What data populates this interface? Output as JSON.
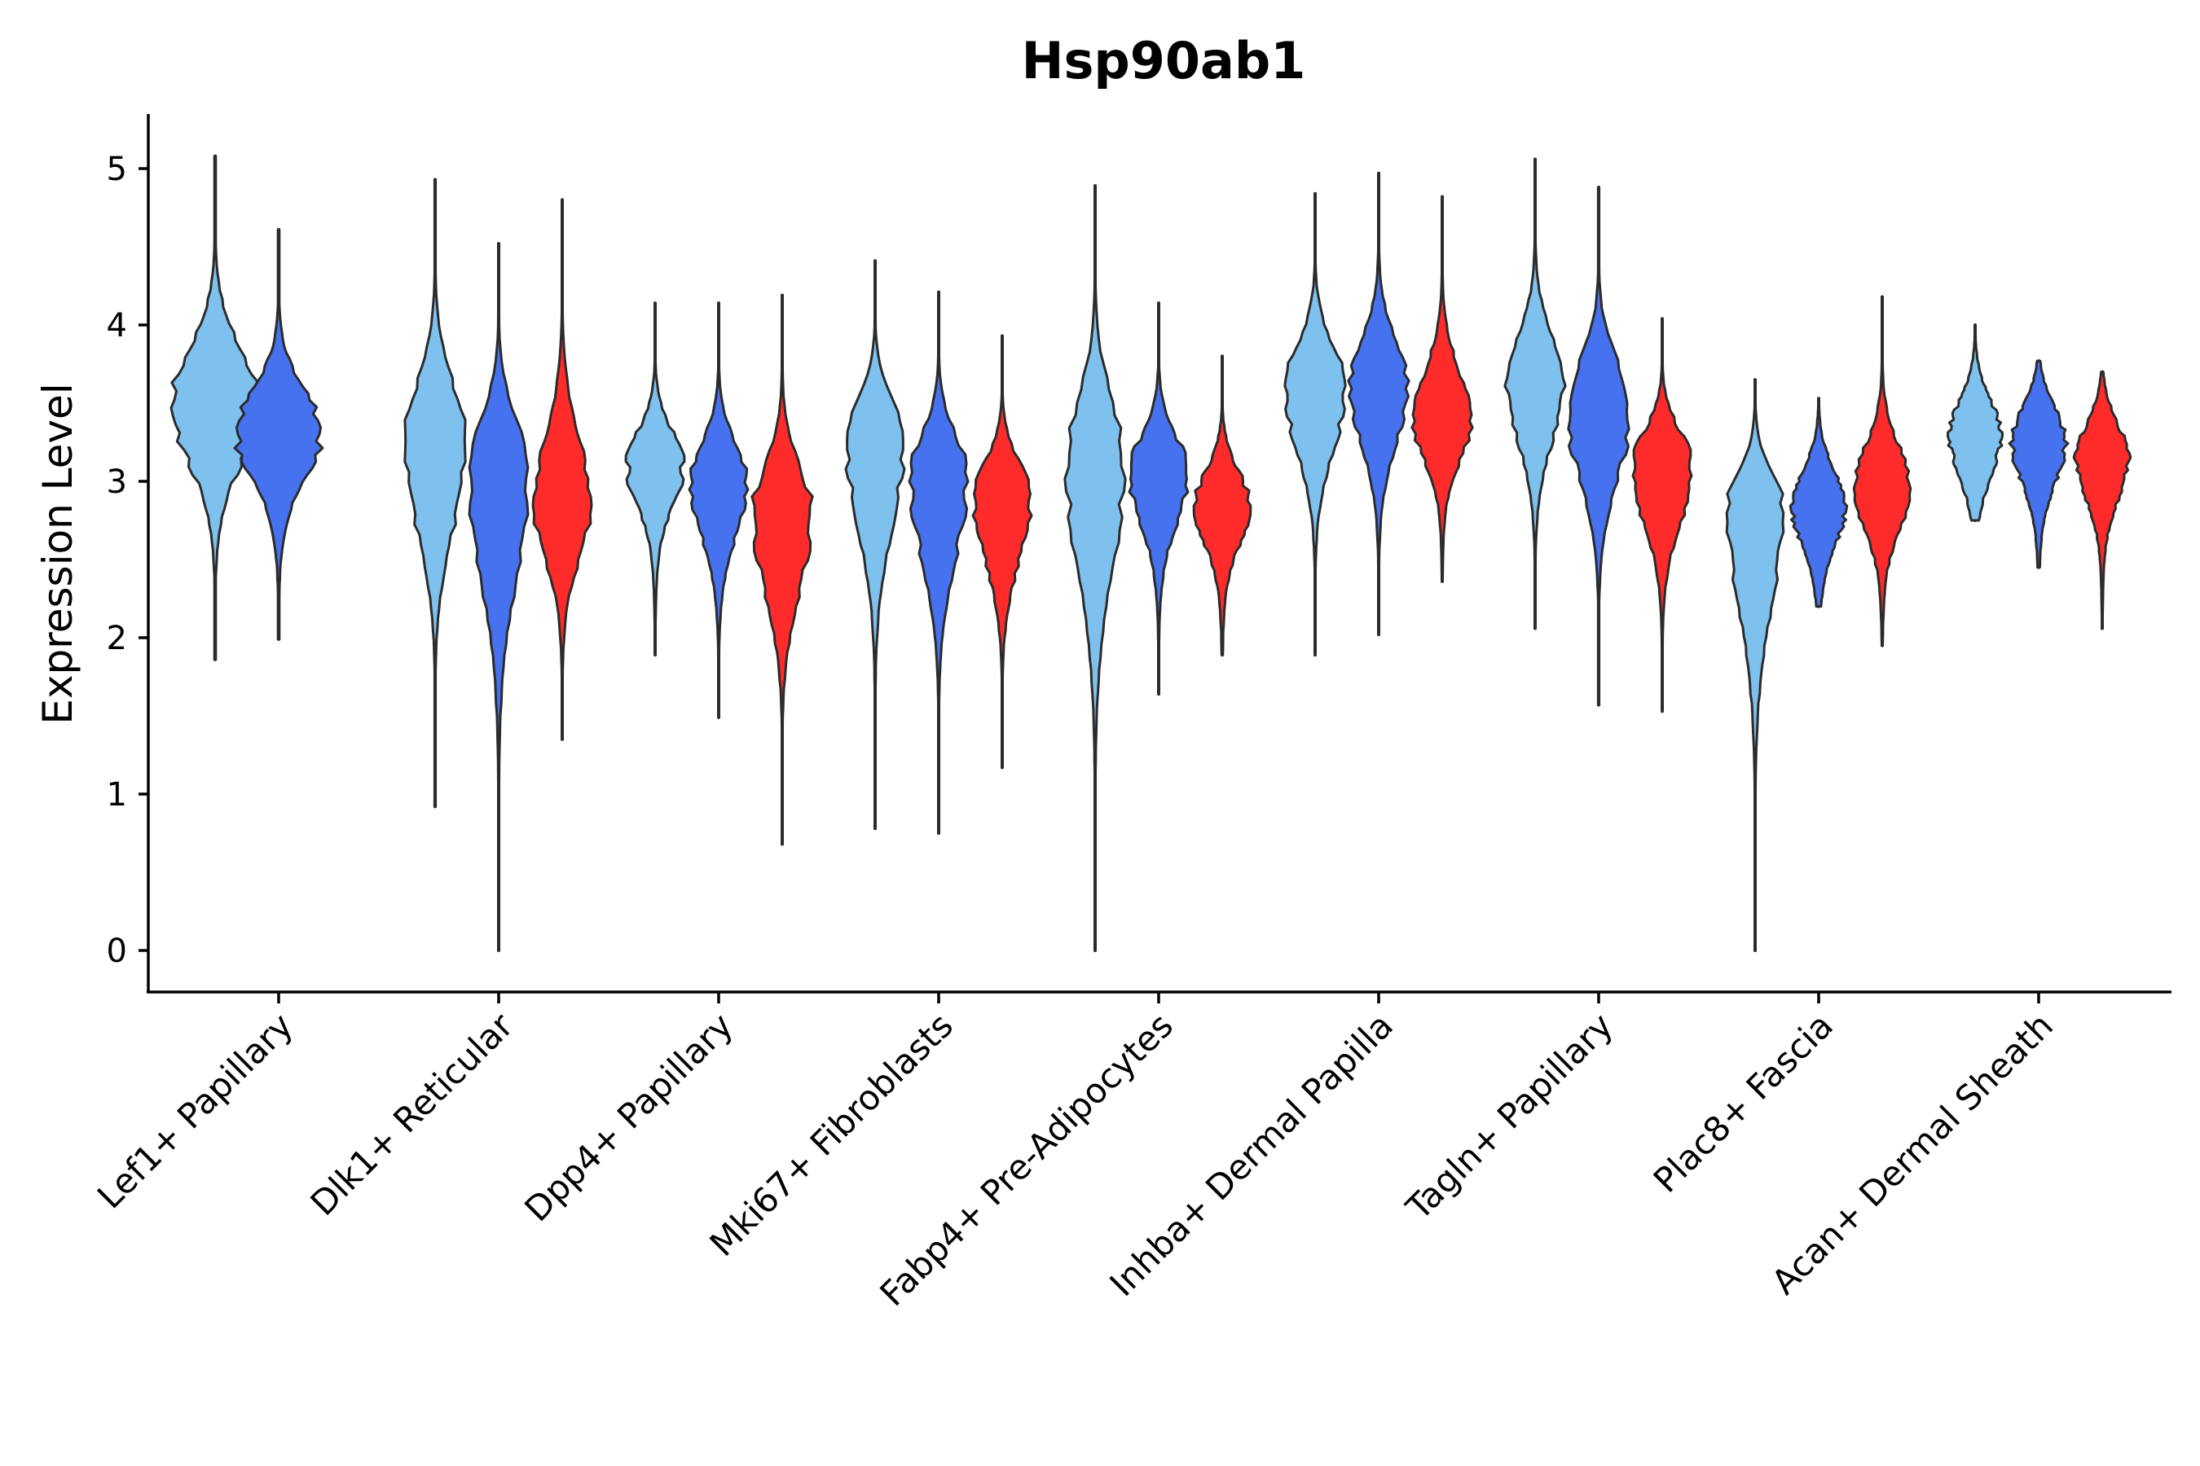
{
  "chart_data": {
    "type": "violin",
    "title": "Hsp90ab1",
    "xlabel": "",
    "ylabel": "Expression Level",
    "ylim": [
      -0.25,
      5.35
    ],
    "yticks": [
      "0",
      "1",
      "2",
      "3",
      "4",
      "5"
    ],
    "grid": false,
    "legend": "none",
    "series_colors": {
      "group_a": "#7ec0ee",
      "group_b": "#4672ef",
      "group_c": "#ff2b2b"
    },
    "categories": [
      "Lef1+ Papillary",
      "Dlk1+ Reticular",
      "Dpp4+ Papillary",
      "Mki67+ Fibroblasts",
      "Fabp4+ Pre-Adipocytes",
      "Inhba+ Dermal Papilla",
      "Tagln+ Papillary",
      "Plac8+ Fascia",
      "Acan+ Dermal Sheath"
    ],
    "groups": [
      {
        "category": "Lef1+ Papillary",
        "violins": [
          {
            "series": "group_a",
            "min": 1.86,
            "max": 5.08,
            "median": 3.5,
            "width": 0.9
          },
          {
            "series": "group_b",
            "min": 1.99,
            "max": 4.61,
            "median": 3.3,
            "width": 0.9
          }
        ]
      },
      {
        "category": "Dlk1+ Reticular",
        "violins": [
          {
            "series": "group_a",
            "min": 0.92,
            "max": 4.93,
            "median": 3.25,
            "width": 0.62
          },
          {
            "series": "group_b",
            "min": 0.0,
            "max": 4.52,
            "median": 3.1,
            "width": 0.6
          },
          {
            "series": "group_c",
            "min": 1.35,
            "max": 4.8,
            "median": 2.85,
            "width": 0.6
          }
        ]
      },
      {
        "category": "Dpp4+ Papillary",
        "violins": [
          {
            "series": "group_a",
            "min": 1.89,
            "max": 4.14,
            "median": 3.1,
            "width": 0.6
          },
          {
            "series": "group_b",
            "min": 1.49,
            "max": 4.14,
            "median": 3.0,
            "width": 0.6
          },
          {
            "series": "group_c",
            "min": 0.68,
            "max": 4.19,
            "median": 2.8,
            "width": 0.62
          }
        ]
      },
      {
        "category": "Mki67+ Fibroblasts",
        "violins": [
          {
            "series": "group_a",
            "min": 0.78,
            "max": 4.41,
            "median": 3.3,
            "width": 0.6
          },
          {
            "series": "group_b",
            "min": 0.75,
            "max": 4.21,
            "median": 3.05,
            "width": 0.6
          },
          {
            "series": "group_c",
            "min": 1.17,
            "max": 3.93,
            "median": 2.9,
            "width": 0.6
          }
        ]
      },
      {
        "category": "Fabp4+ Pre-Adipocytes",
        "violins": [
          {
            "series": "group_a",
            "min": 0.0,
            "max": 4.89,
            "median": 3.15,
            "width": 0.62
          },
          {
            "series": "group_b",
            "min": 1.64,
            "max": 4.14,
            "median": 3.05,
            "width": 0.6
          },
          {
            "series": "group_c",
            "min": 1.89,
            "max": 3.8,
            "median": 2.85,
            "width": 0.58
          }
        ]
      },
      {
        "category": "Inhba+ Dermal Papilla",
        "violins": [
          {
            "series": "group_a",
            "min": 1.89,
            "max": 4.84,
            "median": 3.6,
            "width": 0.62
          },
          {
            "series": "group_b",
            "min": 2.02,
            "max": 4.97,
            "median": 3.6,
            "width": 0.62
          },
          {
            "series": "group_c",
            "min": 2.36,
            "max": 4.82,
            "median": 3.4,
            "width": 0.62
          }
        ]
      },
      {
        "category": "Tagln+ Papillary",
        "violins": [
          {
            "series": "group_a",
            "min": 2.06,
            "max": 5.06,
            "median": 3.6,
            "width": 0.62
          },
          {
            "series": "group_b",
            "min": 1.57,
            "max": 4.88,
            "median": 3.45,
            "width": 0.62
          },
          {
            "series": "group_c",
            "min": 1.53,
            "max": 4.04,
            "median": 3.1,
            "width": 0.6
          }
        ]
      },
      {
        "category": "Plac8+ Fascia",
        "violins": [
          {
            "series": "group_a",
            "min": 0.0,
            "max": 3.65,
            "median": 2.85,
            "width": 0.58
          },
          {
            "series": "group_b",
            "min": 2.2,
            "max": 3.53,
            "median": 2.85,
            "width": 0.58
          },
          {
            "series": "group_c",
            "min": 1.95,
            "max": 4.18,
            "median": 2.95,
            "width": 0.58
          }
        ]
      },
      {
        "category": "Acan+ Dermal Sheath",
        "violins": [
          {
            "series": "group_a",
            "min": 2.75,
            "max": 4.0,
            "median": 3.3,
            "width": 0.56
          },
          {
            "series": "group_b",
            "min": 2.45,
            "max": 3.77,
            "median": 3.25,
            "width": 0.6
          },
          {
            "series": "group_c",
            "min": 2.06,
            "max": 3.7,
            "median": 3.15,
            "width": 0.58
          }
        ]
      }
    ]
  }
}
